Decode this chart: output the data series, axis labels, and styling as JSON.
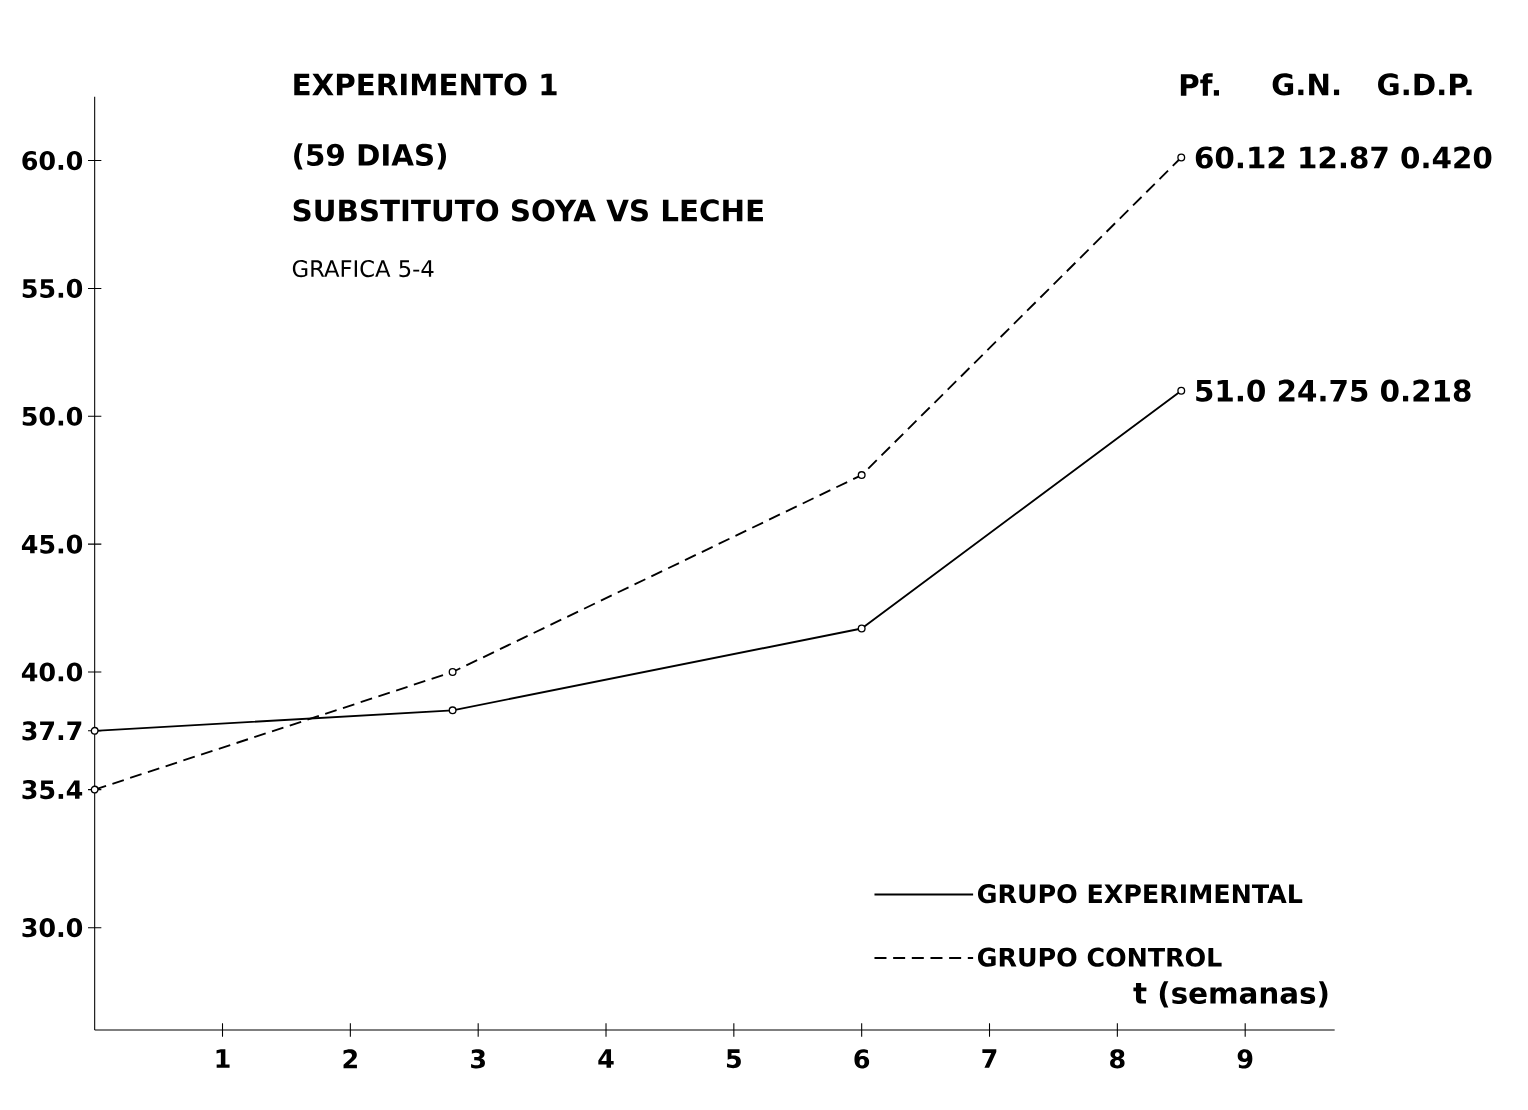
{
  "chart_data": {
    "type": "line",
    "title": "EXPERIMENTO 1",
    "subtitle": "(59 DIAS)",
    "xlabel": "t (semanas)",
    "annotations": [
      "SUBSTITUTO  SOYA VS LECHE",
      "GRAFICA 5-4",
      "Pf.",
      "G.N.",
      "G.D.P.",
      {
        "text": "60.12  12.87  0.420",
        "x": 8.5,
        "y": 60.12
      },
      {
        "text": "51.0     24.75  0.218",
        "x": 8.5,
        "y": 51.0
      }
    ],
    "xlim": [
      0,
      9.7
    ],
    "ylim": [
      26,
      62.5
    ],
    "xticks": [
      1,
      2,
      3,
      4,
      5,
      6,
      7,
      8,
      9
    ],
    "yticks": [
      {
        "value": 30,
        "label": "30.0"
      },
      35.4,
      37.7,
      {
        "value": 40,
        "label": "40.0"
      },
      {
        "value": 45,
        "label": "45.0"
      },
      {
        "value": 50,
        "label": "50.0"
      },
      {
        "value": 55,
        "label": "55.0"
      },
      {
        "value": 60,
        "label": "60.0"
      }
    ],
    "series": [
      {
        "name": "GRUPO EXPERIMENTAL",
        "color": "#000000",
        "line_style": "solid",
        "x": [
          0,
          2.8,
          6,
          8.5
        ],
        "values": [
          37.7,
          38.5,
          41.7,
          51.0
        ]
      },
      {
        "name": "GRUPO CONTROL",
        "color": "#000000",
        "line_style": "dashed",
        "x": [
          0,
          2.8,
          6,
          8.5
        ],
        "values": [
          35.4,
          40.0,
          47.7,
          60.12
        ]
      }
    ],
    "marker": "circle",
    "legend": "bottom right",
    "grid": false
  }
}
